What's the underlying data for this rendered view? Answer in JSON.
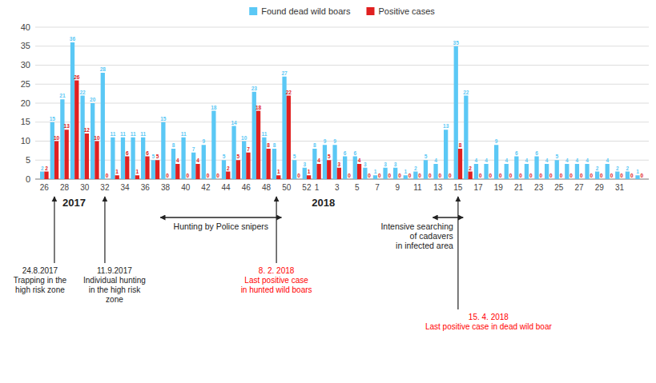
{
  "chart_data": {
    "type": "bar",
    "categories": [
      "26",
      null,
      "28",
      null,
      "30",
      null,
      "32",
      null,
      "34",
      null,
      "36",
      null,
      "38",
      null,
      "40",
      null,
      "42",
      null,
      "44",
      null,
      "46",
      null,
      "48",
      null,
      "50",
      null,
      "52",
      "1",
      null,
      "3",
      null,
      "5",
      null,
      "7",
      null,
      "9",
      null,
      "11",
      null,
      "13",
      null,
      "15",
      null,
      "17",
      null,
      "19",
      null,
      "21",
      null,
      "23",
      null,
      "25",
      null,
      "27",
      null,
      "29",
      null,
      "31",
      null,
      null
    ],
    "series": [
      {
        "name": "Found dead wild boars",
        "color": "#5BC8F5",
        "values": [
          2,
          15,
          21,
          36,
          22,
          20,
          28,
          11,
          11,
          11,
          11,
          5,
          15,
          8,
          11,
          7,
          9,
          18,
          5,
          14,
          10,
          23,
          11,
          8,
          27,
          5,
          3,
          8,
          9,
          9,
          6,
          6,
          3,
          1,
          3,
          3,
          1,
          2,
          5,
          4,
          13,
          35,
          22,
          4,
          4,
          9,
          4,
          6,
          4,
          6,
          4,
          5,
          4,
          4,
          4,
          2,
          4,
          2,
          2,
          1
        ]
      },
      {
        "name": "Positive cases",
        "color": "#E02020",
        "values": [
          2,
          10,
          13,
          26,
          12,
          10,
          0,
          1,
          6,
          1,
          6,
          5,
          0,
          4,
          0,
          4,
          0,
          0,
          2,
          5,
          7,
          18,
          8,
          1,
          22,
          0,
          1,
          4,
          5,
          3,
          0,
          4,
          0,
          0,
          0,
          0,
          0,
          0,
          0,
          0,
          0,
          8,
          2,
          0,
          0,
          0,
          0,
          0,
          0,
          0,
          0,
          0,
          0,
          0,
          0,
          0,
          0,
          0,
          0,
          0
        ]
      }
    ],
    "ylim": [
      0,
      40
    ],
    "yticks": [
      0,
      5,
      10,
      15,
      20,
      25,
      30,
      35,
      40
    ],
    "grid": true,
    "legend": "top",
    "data_labels": true,
    "annotations": [
      {
        "text": "2017"
      },
      {
        "text": "2018"
      },
      {
        "text": "Hunting by Police snipers"
      },
      {
        "text": "Intensive searching\nof cadavers\nin infected area"
      },
      {
        "text": "24.8.2017\nTrapping in the\nhigh risk zone"
      },
      {
        "text": "11.9.2017\nIndividual hunting\nin the high risk\nzone"
      },
      {
        "text": "8. 2. 2018\nLast positive case\nin hunted wild boars",
        "color": "red"
      },
      {
        "text": "15. 4. 2018\nLast positive case in dead wild boar",
        "color": "red"
      }
    ]
  }
}
